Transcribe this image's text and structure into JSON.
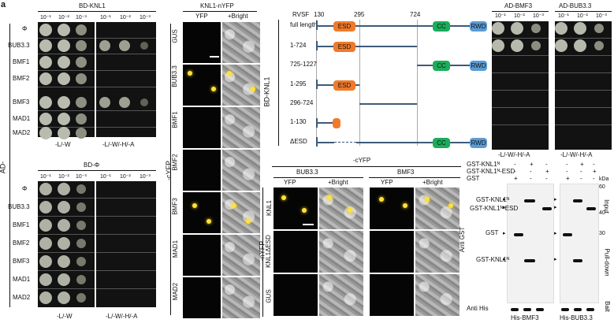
{
  "panel_letter": "a",
  "panel_a": {
    "top_title": "BD-KNL1",
    "bottom_title": "BD-Φ",
    "dilutions": [
      "10⁻¹",
      "10⁻²",
      "10⁻³",
      "10⁻¹",
      "10⁻²",
      "10⁻³"
    ],
    "side_label": "AD-",
    "rows": [
      "Φ",
      "BUB3.3",
      "BMF1",
      "BMF2",
      "BMF3",
      "MAD1",
      "MAD2"
    ],
    "media_left": "-L/-W",
    "media_right": "-L/-W/-H/-A"
  },
  "panel_b": {
    "title": "KNL1-nYFP",
    "col_labels": [
      "YFP",
      "+Bright"
    ],
    "rows": [
      "GUS",
      "BUB3.3",
      "BMF1",
      "BMF2",
      "BMF3",
      "MAD1",
      "MAD2"
    ],
    "side_label": "-cYFP"
  },
  "panel_c": {
    "positions": [
      "RVSF",
      "130",
      "295",
      "724"
    ],
    "side_label": "BD-KNL1",
    "constructs": [
      "full length",
      "1-724",
      "725-1227",
      "1-295",
      "296-724",
      "1-130",
      "ΔESD"
    ],
    "domains": {
      "esd": "ESD",
      "cc": "CC",
      "rwd": "RWD"
    },
    "colors": {
      "esd": "#f07a2a",
      "cc": "#1aad5a",
      "rwd": "#5b9bd5",
      "backbone": "#3e5a78"
    }
  },
  "panel_d": {
    "titles": [
      "AD-BMF3",
      "AD-BUB3.3"
    ],
    "dilutions": [
      "10⁻¹",
      "10⁻²",
      "10⁻³",
      "10⁻¹",
      "10⁻²",
      "10⁻³"
    ],
    "media": [
      "-L/-W/-H/-A",
      "-L/-W/-H/-A"
    ]
  },
  "panel_e": {
    "top_label": "-cYFP",
    "groups": [
      "BUB3.3",
      "BMF3"
    ],
    "col_labels": [
      "YFP",
      "+Bright",
      "YFP",
      "+Bright"
    ],
    "rows": [
      "KNL1",
      "KNL1ΔESD",
      "GUS"
    ],
    "side_label": "-nYFP"
  },
  "panel_f": {
    "legend": [
      "GST-KNL1ᴺ",
      "GST-KNL1ᴺ-ESD",
      "GST"
    ],
    "legend_marks": [
      [
        "-",
        "+",
        "-",
        "-",
        "+",
        "-"
      ],
      [
        "-",
        "-",
        "+",
        "-",
        "-",
        "+"
      ],
      [
        "+",
        "-",
        "-",
        "+",
        "-",
        "-"
      ]
    ],
    "kda_unit": "kDa",
    "markers": [
      "60",
      "40",
      "30"
    ],
    "band_labels": [
      "GST-KNL1ᴺ",
      "GST-KNL1ᴺ-ESD",
      "GST",
      "GST-KNL1ᴺ"
    ],
    "side_labels": {
      "antibody_gst": "Anti GST",
      "antibody_his": "Anti His",
      "input": "Input",
      "pulldown": "Pull-down",
      "bait": "Bait"
    },
    "bottom_labels": [
      "His-BMF3",
      "His-BUB3.3"
    ]
  }
}
